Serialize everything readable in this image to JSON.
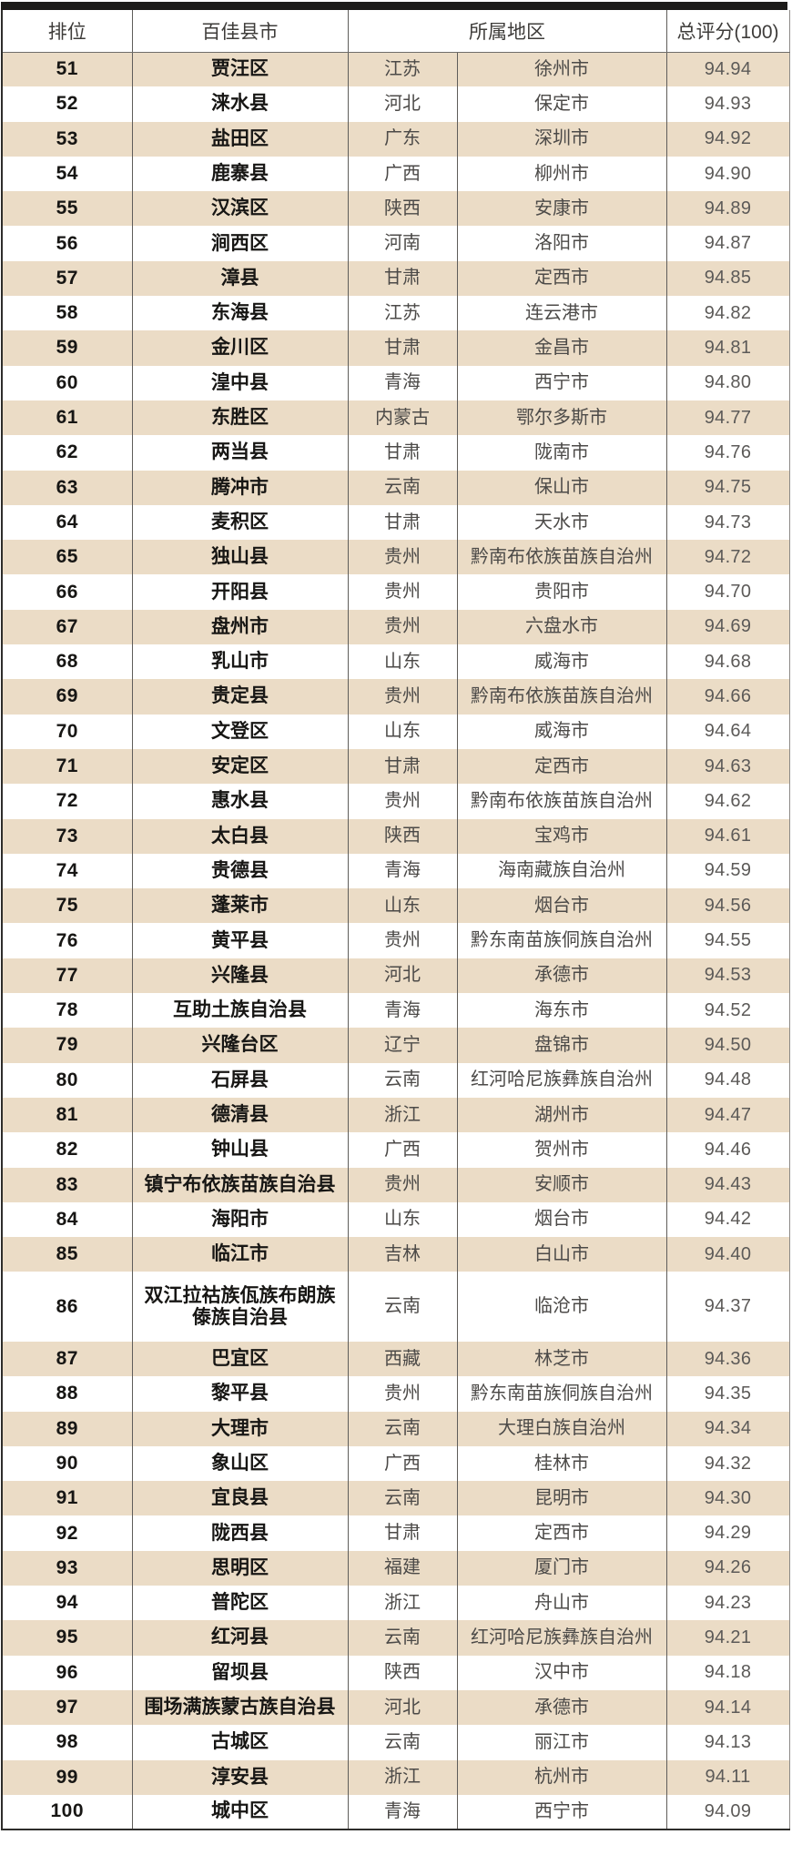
{
  "table": {
    "headers": {
      "rank": "排位",
      "county": "百佳县市",
      "region": "所属地区",
      "score": "总评分(100)"
    }
  },
  "colors": {
    "row_beige": "#ebdcc6",
    "row_white": "#ffffff",
    "top_bar": "#1d1c1a",
    "text_dark": "#171614",
    "text_gray": "#4c4a48"
  },
  "chart_data": {
    "type": "table",
    "columns": [
      "排位",
      "百佳县市",
      "所属地区",
      "总评分(100)"
    ],
    "layout": {
      "region_spans_two_subcolumns": true,
      "zebra": "odd-rows-beige",
      "grid": "vertical-lines-only"
    },
    "rows": [
      [
        51,
        "贾汪区",
        "江苏",
        "徐州市",
        "94.94"
      ],
      [
        52,
        "涞水县",
        "河北",
        "保定市",
        "94.93"
      ],
      [
        53,
        "盐田区",
        "广东",
        "深圳市",
        "94.92"
      ],
      [
        54,
        "鹿寨县",
        "广西",
        "柳州市",
        "94.90"
      ],
      [
        55,
        "汉滨区",
        "陕西",
        "安康市",
        "94.89"
      ],
      [
        56,
        "涧西区",
        "河南",
        "洛阳市",
        "94.87"
      ],
      [
        57,
        "漳县",
        "甘肃",
        "定西市",
        "94.85"
      ],
      [
        58,
        "东海县",
        "江苏",
        "连云港市",
        "94.82"
      ],
      [
        59,
        "金川区",
        "甘肃",
        "金昌市",
        "94.81"
      ],
      [
        60,
        "湟中县",
        "青海",
        "西宁市",
        "94.80"
      ],
      [
        61,
        "东胜区",
        "内蒙古",
        "鄂尔多斯市",
        "94.77"
      ],
      [
        62,
        "两当县",
        "甘肃",
        "陇南市",
        "94.76"
      ],
      [
        63,
        "腾冲市",
        "云南",
        "保山市",
        "94.75"
      ],
      [
        64,
        "麦积区",
        "甘肃",
        "天水市",
        "94.73"
      ],
      [
        65,
        "独山县",
        "贵州",
        "黔南布依族苗族自治州",
        "94.72"
      ],
      [
        66,
        "开阳县",
        "贵州",
        "贵阳市",
        "94.70"
      ],
      [
        67,
        "盘州市",
        "贵州",
        "六盘水市",
        "94.69"
      ],
      [
        68,
        "乳山市",
        "山东",
        "威海市",
        "94.68"
      ],
      [
        69,
        "贵定县",
        "贵州",
        "黔南布依族苗族自治州",
        "94.66"
      ],
      [
        70,
        "文登区",
        "山东",
        "威海市",
        "94.64"
      ],
      [
        71,
        "安定区",
        "甘肃",
        "定西市",
        "94.63"
      ],
      [
        72,
        "惠水县",
        "贵州",
        "黔南布依族苗族自治州",
        "94.62"
      ],
      [
        73,
        "太白县",
        "陕西",
        "宝鸡市",
        "94.61"
      ],
      [
        74,
        "贵德县",
        "青海",
        "海南藏族自治州",
        "94.59"
      ],
      [
        75,
        "蓬莱市",
        "山东",
        "烟台市",
        "94.56"
      ],
      [
        76,
        "黄平县",
        "贵州",
        "黔东南苗族侗族自治州",
        "94.55"
      ],
      [
        77,
        "兴隆县",
        "河北",
        "承德市",
        "94.53"
      ],
      [
        78,
        "互助土族自治县",
        "青海",
        "海东市",
        "94.52"
      ],
      [
        79,
        "兴隆台区",
        "辽宁",
        "盘锦市",
        "94.50"
      ],
      [
        80,
        "石屏县",
        "云南",
        "红河哈尼族彝族自治州",
        "94.48"
      ],
      [
        81,
        "德清县",
        "浙江",
        "湖州市",
        "94.47"
      ],
      [
        82,
        "钟山县",
        "广西",
        "贺州市",
        "94.46"
      ],
      [
        83,
        "镇宁布依族苗族自治县",
        "贵州",
        "安顺市",
        "94.43"
      ],
      [
        84,
        "海阳市",
        "山东",
        "烟台市",
        "94.42"
      ],
      [
        85,
        "临江市",
        "吉林",
        "白山市",
        "94.40"
      ],
      [
        86,
        "双江拉祜族佤族布朗族傣族自治县",
        "云南",
        "临沧市",
        "94.37"
      ],
      [
        87,
        "巴宜区",
        "西藏",
        "林芝市",
        "94.36"
      ],
      [
        88,
        "黎平县",
        "贵州",
        "黔东南苗族侗族自治州",
        "94.35"
      ],
      [
        89,
        "大理市",
        "云南",
        "大理白族自治州",
        "94.34"
      ],
      [
        90,
        "象山区",
        "广西",
        "桂林市",
        "94.32"
      ],
      [
        91,
        "宜良县",
        "云南",
        "昆明市",
        "94.30"
      ],
      [
        92,
        "陇西县",
        "甘肃",
        "定西市",
        "94.29"
      ],
      [
        93,
        "思明区",
        "福建",
        "厦门市",
        "94.26"
      ],
      [
        94,
        "普陀区",
        "浙江",
        "舟山市",
        "94.23"
      ],
      [
        95,
        "红河县",
        "云南",
        "红河哈尼族彝族自治州",
        "94.21"
      ],
      [
        96,
        "留坝县",
        "陕西",
        "汉中市",
        "94.18"
      ],
      [
        97,
        "围场满族蒙古族自治县",
        "河北",
        "承德市",
        "94.14"
      ],
      [
        98,
        "古城区",
        "云南",
        "丽江市",
        "94.13"
      ],
      [
        99,
        "淳安县",
        "浙江",
        "杭州市",
        "94.11"
      ],
      [
        100,
        "城中区",
        "青海",
        "西宁市",
        "94.09"
      ]
    ]
  }
}
